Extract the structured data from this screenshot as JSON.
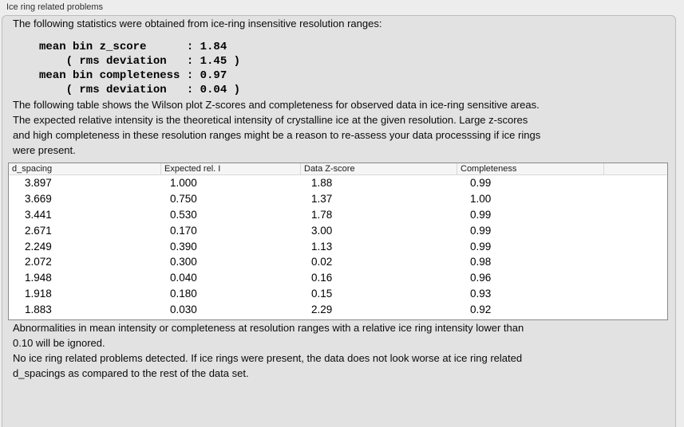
{
  "window": {
    "title": "Ice ring related problems"
  },
  "intro": {
    "text": "The following statistics were obtained from ice-ring insensitive resolution ranges:",
    "stats": "mean bin z_score      : 1.84\n    ( rms deviation   : 1.45 )\nmean bin completeness : 0.97\n    ( rms deviation   : 0.04 )"
  },
  "table_intro": "The following table shows the Wilson plot Z-scores and completeness for observed data in ice-ring sensitive areas.\nThe expected relative intensity is the theoretical intensity of crystalline ice at the given resolution. Large z-scores\nand high completeness in these resolution ranges might be a reason to re-assess your data processsing if ice rings\nwere present.",
  "table": {
    "columns": [
      "d_spacing",
      "Expected rel. I",
      "Data Z-score",
      "Completeness"
    ],
    "rows": [
      [
        "3.897",
        "1.000",
        "1.88",
        "0.99"
      ],
      [
        "3.669",
        "0.750",
        "1.37",
        "1.00"
      ],
      [
        "3.441",
        "0.530",
        "1.78",
        "0.99"
      ],
      [
        "2.671",
        "0.170",
        "3.00",
        "0.99"
      ],
      [
        "2.249",
        "0.390",
        "1.13",
        "0.99"
      ],
      [
        "2.072",
        "0.300",
        "0.02",
        "0.98"
      ],
      [
        "1.948",
        "0.040",
        "0.16",
        "0.96"
      ],
      [
        "1.918",
        "0.180",
        "0.15",
        "0.93"
      ],
      [
        "1.883",
        "0.030",
        "2.29",
        "0.92"
      ]
    ]
  },
  "notes": {
    "ignore_note": "Abnormalities in mean intensity or completeness at resolution ranges with a relative ice ring intensity lower than\n0.10 will be ignored.",
    "conclusion": "No ice ring related problems detected. If ice rings were present, the data does not look worse at ice ring related\nd_spacings as compared to the rest of the data set."
  }
}
